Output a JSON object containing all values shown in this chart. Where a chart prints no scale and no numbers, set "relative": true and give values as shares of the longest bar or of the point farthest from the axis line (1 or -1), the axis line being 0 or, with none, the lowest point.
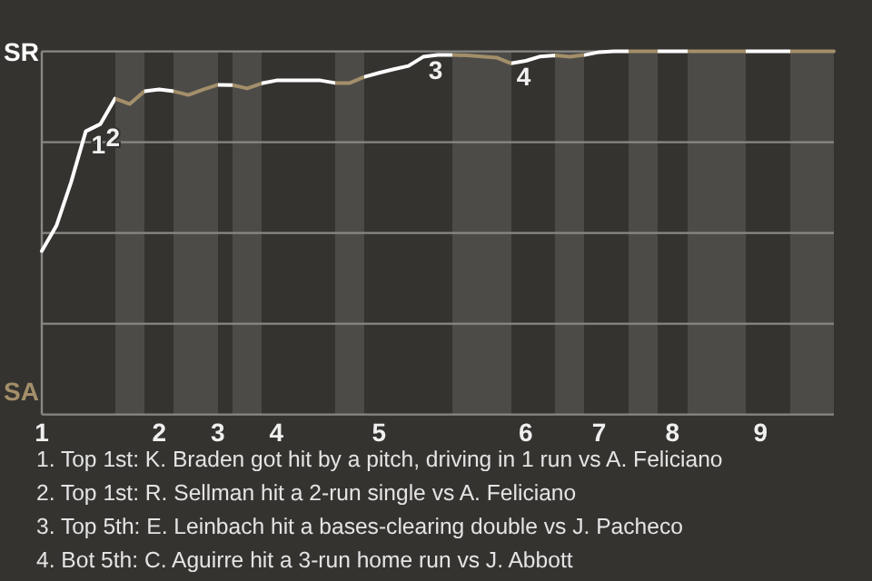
{
  "chart_data": {
    "type": "line",
    "relative": true,
    "categories": [
      "1",
      null,
      null,
      null,
      null,
      null,
      null,
      null,
      "2",
      null,
      null,
      null,
      "3",
      null,
      null,
      null,
      "4",
      null,
      null,
      null,
      null,
      null,
      null,
      "5",
      null,
      null,
      null,
      null,
      null,
      null,
      null,
      null,
      null,
      "6",
      null,
      null,
      null,
      null,
      "7",
      null,
      null,
      null,
      null,
      "8",
      null,
      null,
      null,
      null,
      null,
      "9",
      null,
      null,
      null,
      null,
      null
    ],
    "grid": true,
    "marker": "none",
    "line_style": "solid",
    "values": [
      0.45,
      0.52,
      0.64,
      0.78,
      0.8,
      0.87,
      0.855,
      0.89,
      0.895,
      0.89,
      0.88,
      0.895,
      0.908,
      0.907,
      0.898,
      0.912,
      0.92,
      0.92,
      0.92,
      0.92,
      0.913,
      0.913,
      0.93,
      0.941,
      0.951,
      0.96,
      0.985,
      0.99,
      0.99,
      0.989,
      0.986,
      0.983,
      0.967,
      0.974,
      0.986,
      0.989,
      0.985,
      0.99,
      0.998,
      1,
      1,
      1,
      1,
      1,
      1,
      1,
      1,
      1,
      1,
      1,
      1,
      1,
      1,
      1,
      1
    ],
    "colors": [
      "#ffffff",
      "#ffffff",
      "#ffffff",
      "#ffffff",
      "#ffffff",
      "#ffffff",
      "#a38f6a",
      "#a38f6a",
      "#ffffff",
      "#ffffff",
      "#a38f6a",
      "#a38f6a",
      "#a38f6a",
      "#ffffff",
      "#a38f6a",
      "#a38f6a",
      "#ffffff",
      "#ffffff",
      "#ffffff",
      "#ffffff",
      "#ffffff",
      "#a38f6a",
      "#a38f6a",
      "#ffffff",
      "#ffffff",
      "#ffffff",
      "#ffffff",
      "#ffffff",
      "#ffffff",
      "#a38f6a",
      "#a38f6a",
      "#a38f6a",
      "#a38f6a",
      "#ffffff",
      "#ffffff",
      "#ffffff",
      "#a38f6a",
      "#a38f6a",
      "#ffffff",
      "#ffffff",
      "#ffffff",
      "#a38f6a",
      "#a38f6a",
      "#ffffff",
      "#ffffff",
      "#a38f6a",
      "#a38f6a",
      "#a38f6a",
      "#a38f6a",
      "#ffffff",
      "#ffffff",
      "#ffffff",
      "#a38f6a",
      "#a38f6a",
      "#a38f6a"
    ],
    "annotations": [
      {
        "text": "1",
        "y": 0.78
      },
      {
        "text": "2",
        "y": 0.8
      },
      {
        "text": "3",
        "y": 0.985
      },
      {
        "text": "4",
        "y": 0.967
      },
      "SR",
      "SA",
      "1. Top 1st: K. Braden got hit by a pitch, driving in 1 run vs A. Feliciano",
      "2. Top 1st: R. Sellman hit a 2-run single vs A. Feliciano",
      "3. Top 5th: E. Leinbach hit a bases-clearing double vs J. Pacheco",
      "4. Bot 5th: C. Aguirre hit a 3-run home run vs J. Abbott"
    ]
  }
}
